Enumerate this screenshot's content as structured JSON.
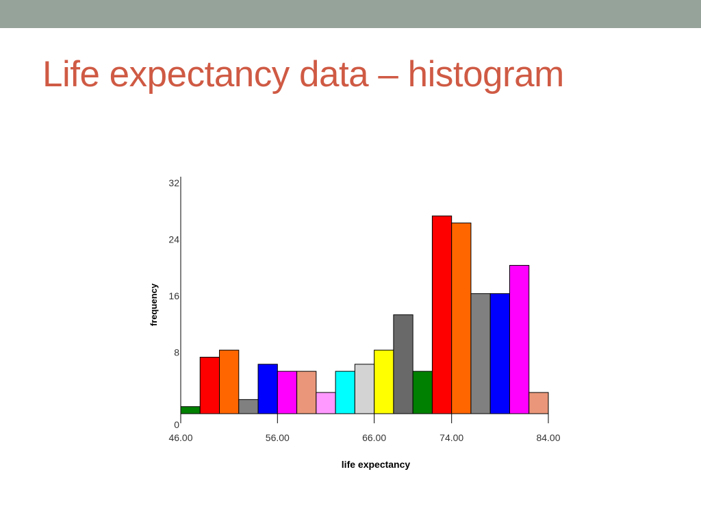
{
  "slide": {
    "title": "Life expectancy data – histogram"
  },
  "colors": {
    "top_bar": "#95a39a",
    "title": "#cf5a44"
  },
  "chart_data": {
    "type": "bar",
    "subtype": "histogram",
    "title": "",
    "xlabel": "life expectancy",
    "ylabel": "frequency",
    "xlim": [
      46,
      84
    ],
    "ylim": [
      0,
      32
    ],
    "x_ticks": [
      {
        "value": 46,
        "label": "46.00"
      },
      {
        "value": 56,
        "label": "56.00"
      },
      {
        "value": 66,
        "label": "66.00"
      },
      {
        "value": 74,
        "label": "74.00"
      },
      {
        "value": 84,
        "label": "84.00"
      }
    ],
    "y_ticks": [
      {
        "value": 0,
        "label": "0"
      },
      {
        "value": 8,
        "label": "8"
      },
      {
        "value": 16,
        "label": "16"
      },
      {
        "value": 24,
        "label": "24"
      },
      {
        "value": 32,
        "label": "32"
      }
    ],
    "bin_width": 2,
    "bins": [
      {
        "start": 46,
        "end": 48,
        "count": 1,
        "color": "#008000"
      },
      {
        "start": 48,
        "end": 50,
        "count": 8,
        "color": "#ff0000"
      },
      {
        "start": 50,
        "end": 52,
        "count": 9,
        "color": "#ff6600"
      },
      {
        "start": 52,
        "end": 54,
        "count": 2,
        "color": "#808080"
      },
      {
        "start": 54,
        "end": 56,
        "count": 7,
        "color": "#0000ff"
      },
      {
        "start": 56,
        "end": 58,
        "count": 6,
        "color": "#ff00ff"
      },
      {
        "start": 58,
        "end": 60,
        "count": 6,
        "color": "#e9967a"
      },
      {
        "start": 60,
        "end": 62,
        "count": 3,
        "color": "#ff99ff"
      },
      {
        "start": 62,
        "end": 64,
        "count": 6,
        "color": "#00ffff"
      },
      {
        "start": 64,
        "end": 66,
        "count": 7,
        "color": "#d3d3d3"
      },
      {
        "start": 66,
        "end": 68,
        "count": 9,
        "color": "#ffff00"
      },
      {
        "start": 68,
        "end": 70,
        "count": 14,
        "color": "#696969"
      },
      {
        "start": 70,
        "end": 72,
        "count": 6,
        "color": "#008000"
      },
      {
        "start": 72,
        "end": 74,
        "count": 28,
        "color": "#ff0000"
      },
      {
        "start": 74,
        "end": 76,
        "count": 27,
        "color": "#ff6600"
      },
      {
        "start": 76,
        "end": 78,
        "count": 17,
        "color": "#808080"
      },
      {
        "start": 78,
        "end": 80,
        "count": 17,
        "color": "#0000ff"
      },
      {
        "start": 80,
        "end": 82,
        "count": 21,
        "color": "#ff00ff"
      },
      {
        "start": 82,
        "end": 84,
        "count": 3,
        "color": "#e9967a"
      }
    ],
    "grid": false,
    "legend": "none"
  }
}
